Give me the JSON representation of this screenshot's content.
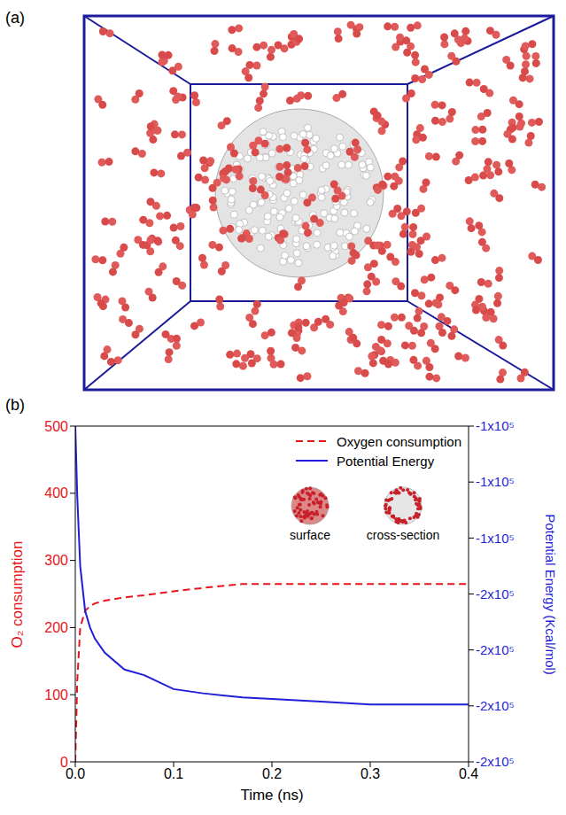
{
  "panel_labels": [
    "(a)",
    "(b)"
  ],
  "chart_data": {
    "type": "line",
    "x_label": "Time (ns)",
    "y_label": "O₂ consumption",
    "y2_label": "Potential Energy (Kcal/mol)",
    "x": [
      0,
      0.002,
      0.005,
      0.01,
      0.015,
      0.02,
      0.03,
      0.05,
      0.07,
      0.1,
      0.13,
      0.17,
      0.2,
      0.25,
      0.3,
      0.35,
      0.4
    ],
    "series": [
      {
        "name": "Oxygen consumption",
        "color": "#e8141b",
        "line_style": "dashed",
        "values": [
          0,
          120,
          200,
          225,
          232,
          236,
          240,
          245,
          248,
          254,
          259,
          265,
          265,
          265,
          265,
          265,
          265
        ]
      },
      {
        "name": "Potential Energy",
        "color": "#1f1fd8",
        "line_style": "solid",
        "axis": "y2",
        "values": [
          -100000,
          -125000,
          -150000,
          -166000,
          -172000,
          -176000,
          -181000,
          -187000,
          -189000,
          -194000,
          -195500,
          -197000,
          -197500,
          -198500,
          -199500,
          -199500,
          -199500
        ]
      }
    ],
    "xlim": [
      0,
      0.4
    ],
    "xticks": [
      {
        "value": 0,
        "label": "0.0"
      },
      0.1,
      0.2,
      0.3,
      0.4
    ],
    "ylim": [
      0,
      500
    ],
    "yticks": [
      0,
      100,
      200,
      300,
      400,
      500
    ],
    "y2lim": [
      -220000,
      -100000
    ],
    "y2ticks": [
      {
        "value": -100000,
        "label": "-1x10⁵"
      },
      {
        "value": -120000,
        "label": "-1x10⁵"
      },
      {
        "value": -140000,
        "label": "-1x10⁵"
      },
      {
        "value": -160000,
        "label": "-2x10⁵"
      },
      {
        "value": -180000,
        "label": "-2x10⁵"
      },
      {
        "value": -200000,
        "label": "-2x10⁵"
      },
      {
        "value": -220000,
        "label": "-2x10⁵"
      }
    ],
    "grid": false,
    "legend": "upper right",
    "annotations": [
      "surface",
      "cross-section"
    ]
  }
}
